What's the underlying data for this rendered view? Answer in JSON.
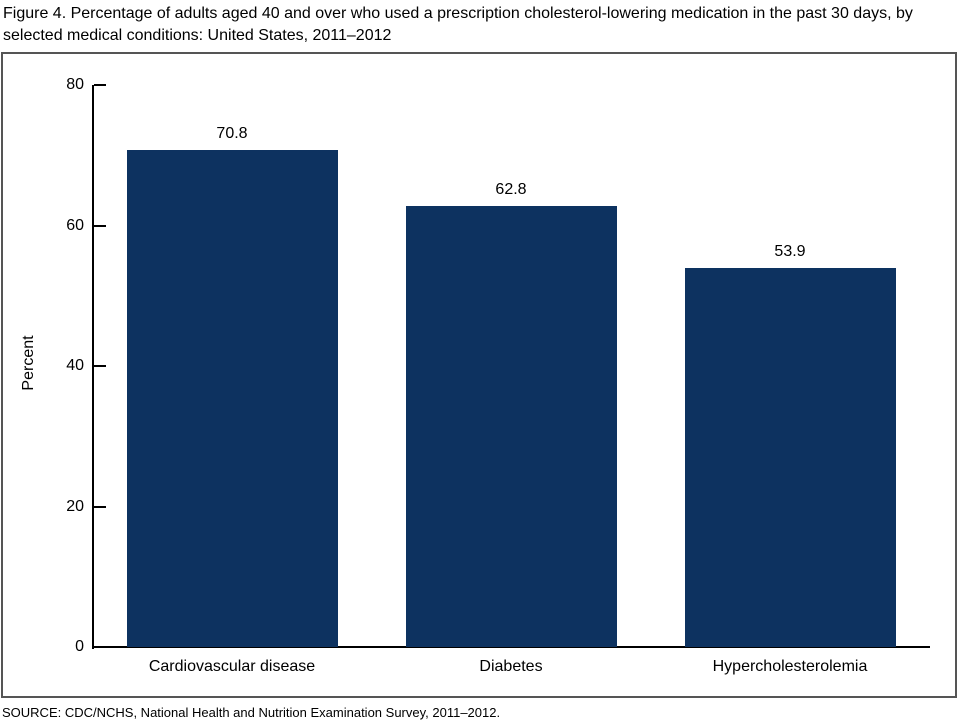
{
  "title": "Figure 4. Percentage of adults aged 40 and over who used a prescription cholesterol-lowering medication in the past 30 days, by selected medical conditions: United States, 2011–2012",
  "source": "SOURCE: CDC/NCHS, National Health and Nutrition Examination Survey, 2011–2012.",
  "colors": {
    "bar": "#0d3260",
    "axis": "#000000",
    "frame_border": "#555555",
    "background": "#ffffff",
    "text": "#000000"
  },
  "chart_data": {
    "type": "bar",
    "title": "Figure 4. Percentage of adults aged 40 and over who used a prescription cholesterol-lowering medication in the past 30 days, by selected medical conditions: United States, 2011–2012",
    "categories": [
      "Cardiovascular disease",
      "Diabetes",
      "Hypercholesterolemia"
    ],
    "values": [
      70.8,
      62.8,
      53.9
    ],
    "value_labels": [
      "70.8",
      "62.8",
      "53.9"
    ],
    "xlabel": "",
    "ylabel": "Percent",
    "ylim": [
      0,
      80
    ],
    "yticks": [
      0,
      20,
      40,
      60,
      80
    ],
    "grid": false,
    "legend": "none",
    "bar_color": "#0d3260"
  }
}
